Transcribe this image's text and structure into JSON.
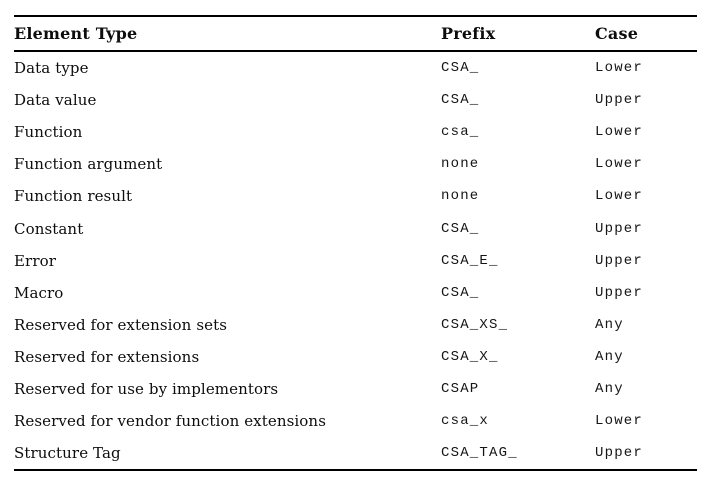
{
  "table": {
    "columns": [
      {
        "label": "Element Type"
      },
      {
        "label": "Prefix"
      },
      {
        "label": "Case"
      }
    ],
    "rows": [
      {
        "element": "Data type",
        "prefix": "CSA_",
        "case": "Lower"
      },
      {
        "element": "Data value",
        "prefix": "CSA_",
        "case": "Upper"
      },
      {
        "element": "Function",
        "prefix": "csa_",
        "case": "Lower"
      },
      {
        "element": "Function argument",
        "prefix": "none",
        "case": "Lower"
      },
      {
        "element": "Function result",
        "prefix": "none",
        "case": "Lower"
      },
      {
        "element": "Constant",
        "prefix": "CSA_",
        "case": "Upper"
      },
      {
        "element": "Error",
        "prefix": "CSA_E_",
        "case": "Upper"
      },
      {
        "element": "Macro",
        "prefix": "CSA_",
        "case": "Upper"
      },
      {
        "element": "Reserved for extension sets",
        "prefix": "CSA_XS_",
        "case": "Any"
      },
      {
        "element": "Reserved for extensions",
        "prefix": "CSA_X_",
        "case": "Any"
      },
      {
        "element": "Reserved for use by implementors",
        "prefix": "CSAP",
        "case": "Any"
      },
      {
        "element": "Reserved for vendor function extensions",
        "prefix": "csa_x",
        "case": "Lower"
      },
      {
        "element": "Structure Tag",
        "prefix": "CSA_TAG_",
        "case": "Upper"
      }
    ],
    "colors": {
      "text": "#0d0d0d",
      "rule": "#000000",
      "background": "#ffffff"
    }
  }
}
